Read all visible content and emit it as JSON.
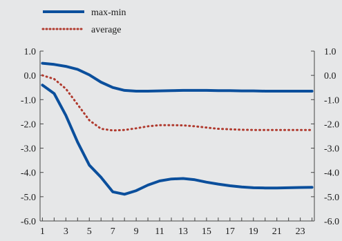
{
  "chart_data": {
    "type": "line",
    "title": "",
    "xlabel": "",
    "ylabel": "",
    "x": [
      1,
      2,
      3,
      4,
      5,
      6,
      7,
      8,
      9,
      10,
      11,
      12,
      13,
      14,
      15,
      16,
      17,
      18,
      19,
      20,
      21,
      22,
      23,
      24
    ],
    "x_tick_labels": [
      "1",
      "3",
      "5",
      "7",
      "9",
      "11",
      "13",
      "15",
      "17",
      "19",
      "21",
      "23"
    ],
    "y_tick_labels": [
      "1.0",
      "0.0",
      "-1.0",
      "-2.0",
      "-3.0",
      "-4.0",
      "-5.0",
      "-6.0"
    ],
    "ylim": [
      -6.0,
      1.0
    ],
    "y_ticks": [
      1.0,
      0.0,
      -1.0,
      -2.0,
      -3.0,
      -4.0,
      -5.0,
      -6.0
    ],
    "secondary_y_axis": true,
    "grid": false,
    "legend_position": "top-left",
    "series": [
      {
        "name": "max-min",
        "style": "solid",
        "color": "#0b4f9c",
        "subseries": [
          [
            0.5,
            0.45,
            0.37,
            0.25,
            0.02,
            -0.28,
            -0.5,
            -0.62,
            -0.65,
            -0.65,
            -0.64,
            -0.63,
            -0.62,
            -0.62,
            -0.62,
            -0.63,
            -0.63,
            -0.64,
            -0.64,
            -0.65,
            -0.65,
            -0.65,
            -0.65,
            -0.65
          ],
          [
            -0.4,
            -0.75,
            -1.65,
            -2.75,
            -3.7,
            -4.2,
            -4.8,
            -4.9,
            -4.75,
            -4.52,
            -4.35,
            -4.27,
            -4.25,
            -4.3,
            -4.4,
            -4.48,
            -4.55,
            -4.6,
            -4.63,
            -4.64,
            -4.64,
            -4.63,
            -4.62,
            -4.61
          ]
        ]
      },
      {
        "name": "average",
        "style": "dotted",
        "color": "#b03a2e",
        "values": [
          0.0,
          -0.15,
          -0.55,
          -1.2,
          -1.85,
          -2.2,
          -2.27,
          -2.25,
          -2.18,
          -2.1,
          -2.05,
          -2.05,
          -2.06,
          -2.1,
          -2.15,
          -2.2,
          -2.22,
          -2.24,
          -2.25,
          -2.25,
          -2.25,
          -2.25,
          -2.25,
          -2.25
        ]
      }
    ]
  }
}
